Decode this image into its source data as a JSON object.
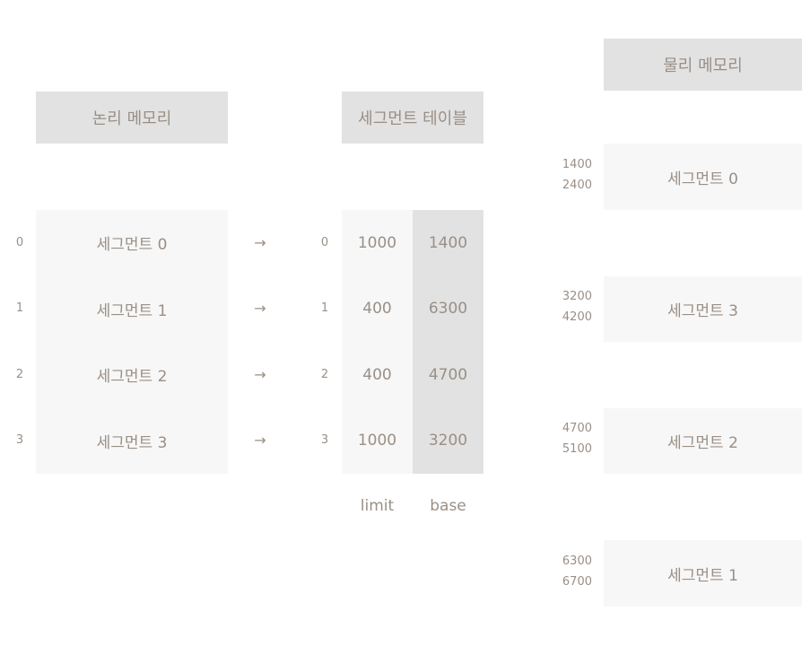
{
  "headers": {
    "logical": "논리 메모리",
    "table": "세그먼트 테이블",
    "physical": "물리 메모리"
  },
  "logical_segments": [
    {
      "index": "0",
      "label": "세그먼트 0"
    },
    {
      "index": "1",
      "label": "세그먼트 1"
    },
    {
      "index": "2",
      "label": "세그먼트 2"
    },
    {
      "index": "3",
      "label": "세그먼트 3"
    }
  ],
  "arrow": "→",
  "table_rows": [
    {
      "index": "0",
      "limit": "1000",
      "base": "1400"
    },
    {
      "index": "1",
      "limit": "400",
      "base": "6300"
    },
    {
      "index": "2",
      "limit": "400",
      "base": "4700"
    },
    {
      "index": "3",
      "limit": "1000",
      "base": "3200"
    }
  ],
  "table_footer": {
    "limit": "limit",
    "base": "base"
  },
  "physical_blocks": [
    {
      "start": "1400",
      "end": "2400",
      "label": "세그먼트 0"
    },
    {
      "start": "3200",
      "end": "4200",
      "label": "세그먼트 3"
    },
    {
      "start": "4700",
      "end": "5100",
      "label": "세그먼트 2"
    },
    {
      "start": "6300",
      "end": "6700",
      "label": "세그먼트 1"
    }
  ]
}
